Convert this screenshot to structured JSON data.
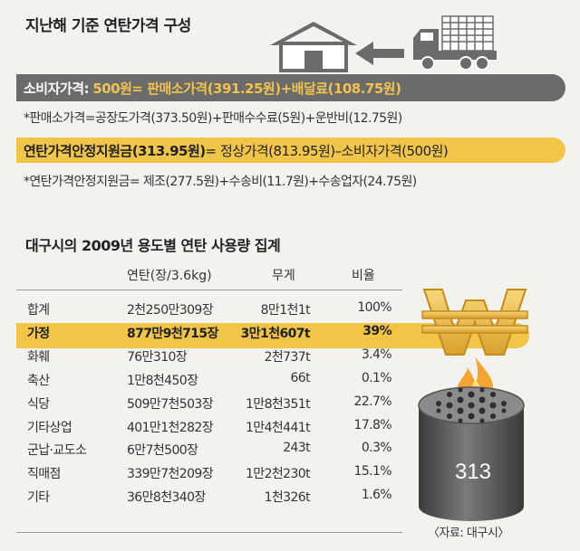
{
  "top": {
    "title": "지난해 기준 연탄가격 구성",
    "consumer_label": "소비자가격:",
    "consumer_value": "500원",
    "consumer_formula": "= 판매소가격(391.25원)+배달료(108.75원)",
    "note1": "*판매소가격=공장도가격(373.50원)+판매수수료(5원)+운반비(12.75원)",
    "subsidy_label": "연탄가격안정지원금(313.95원)",
    "subsidy_formula": "= 정상가격(813.95원)–소비자가격(500원)",
    "note2": "*연탄가격안정지원금= 제조(277.5원)+수송비(11.7원)+수송업자(24.75원)"
  },
  "chart_data": {
    "type": "table",
    "title": "대구시의 2009년 용도별 연탄 사용량 집계",
    "columns": [
      "",
      "연탄(장/3.6kg)",
      "무게",
      "비율"
    ],
    "rows": [
      {
        "category": "합계",
        "count": "2천250만309장",
        "weight": "8만1천1t",
        "ratio": "100%",
        "ratio_value": 100
      },
      {
        "category": "가정",
        "count": "877만9천715장",
        "weight": "3만1천607t",
        "ratio": "39%",
        "ratio_value": 39,
        "highlight": true
      },
      {
        "category": "화훼",
        "count": "76만310장",
        "weight": "2천737t",
        "ratio": "3.4%",
        "ratio_value": 3.4
      },
      {
        "category": "축산",
        "count": "1만8천450장",
        "weight": "66t",
        "ratio": "0.1%",
        "ratio_value": 0.1
      },
      {
        "category": "식당",
        "count": "509만7천503장",
        "weight": "1만8천351t",
        "ratio": "22.7%",
        "ratio_value": 22.7
      },
      {
        "category": "기타상업",
        "count": "401만1천282장",
        "weight": "1만4천441t",
        "ratio": "17.8%",
        "ratio_value": 17.8
      },
      {
        "category": "군납·교도소",
        "count": "6만7천500장",
        "weight": "243t",
        "ratio": "0.3%",
        "ratio_value": 0.3
      },
      {
        "category": "직매점",
        "count": "339만7천209장",
        "weight": "1만2천230t",
        "ratio": "15.1%",
        "ratio_value": 15.1
      },
      {
        "category": "기타",
        "count": "36만8천340장",
        "weight": "1천326t",
        "ratio": "1.6%",
        "ratio_value": 1.6
      }
    ]
  },
  "illustration": {
    "briquette_number": "313",
    "icons": [
      "house-icon",
      "truck-icon",
      "arrow-left-icon",
      "won-sign-icon",
      "flame-icon",
      "coal-briquette-icon"
    ],
    "colors": {
      "gold": "#f1c548",
      "gray_bar": "#6b6b6b",
      "briquette": "#555555"
    }
  },
  "source": "〈자료: 대구시〉"
}
